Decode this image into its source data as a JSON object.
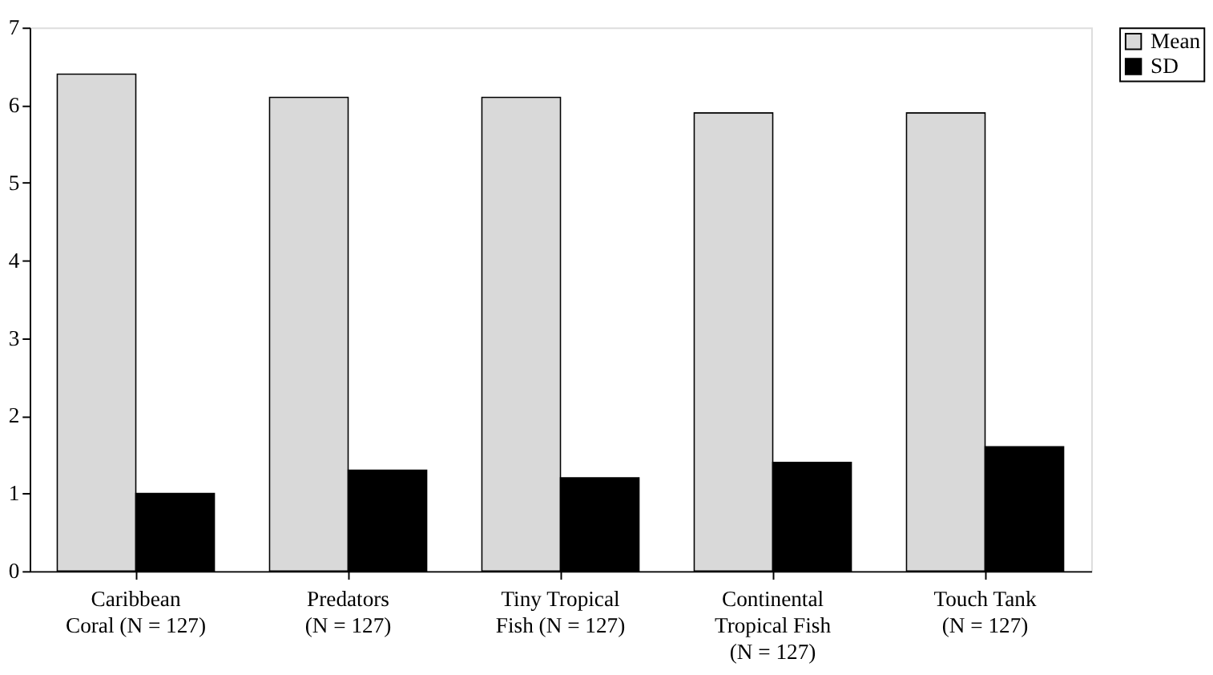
{
  "chart_data": {
    "type": "bar",
    "categories": [
      "Caribbean\nCoral (N = 127)",
      "Predators\n(N = 127)",
      "Tiny Tropical\nFish (N = 127)",
      "Continental\nTropical Fish\n(N = 127)",
      "Touch Tank\n(N = 127)"
    ],
    "series": [
      {
        "name": "Mean",
        "color": "#d9d9d9",
        "values": [
          6.4,
          6.1,
          6.1,
          5.9,
          5.9
        ]
      },
      {
        "name": "SD",
        "color": "#000000",
        "values": [
          1.0,
          1.3,
          1.2,
          1.4,
          1.6
        ]
      }
    ],
    "ylim": [
      0,
      7
    ],
    "yticks": [
      0,
      1,
      2,
      3,
      4,
      5,
      6,
      7
    ],
    "grid": false,
    "legend": "right"
  }
}
